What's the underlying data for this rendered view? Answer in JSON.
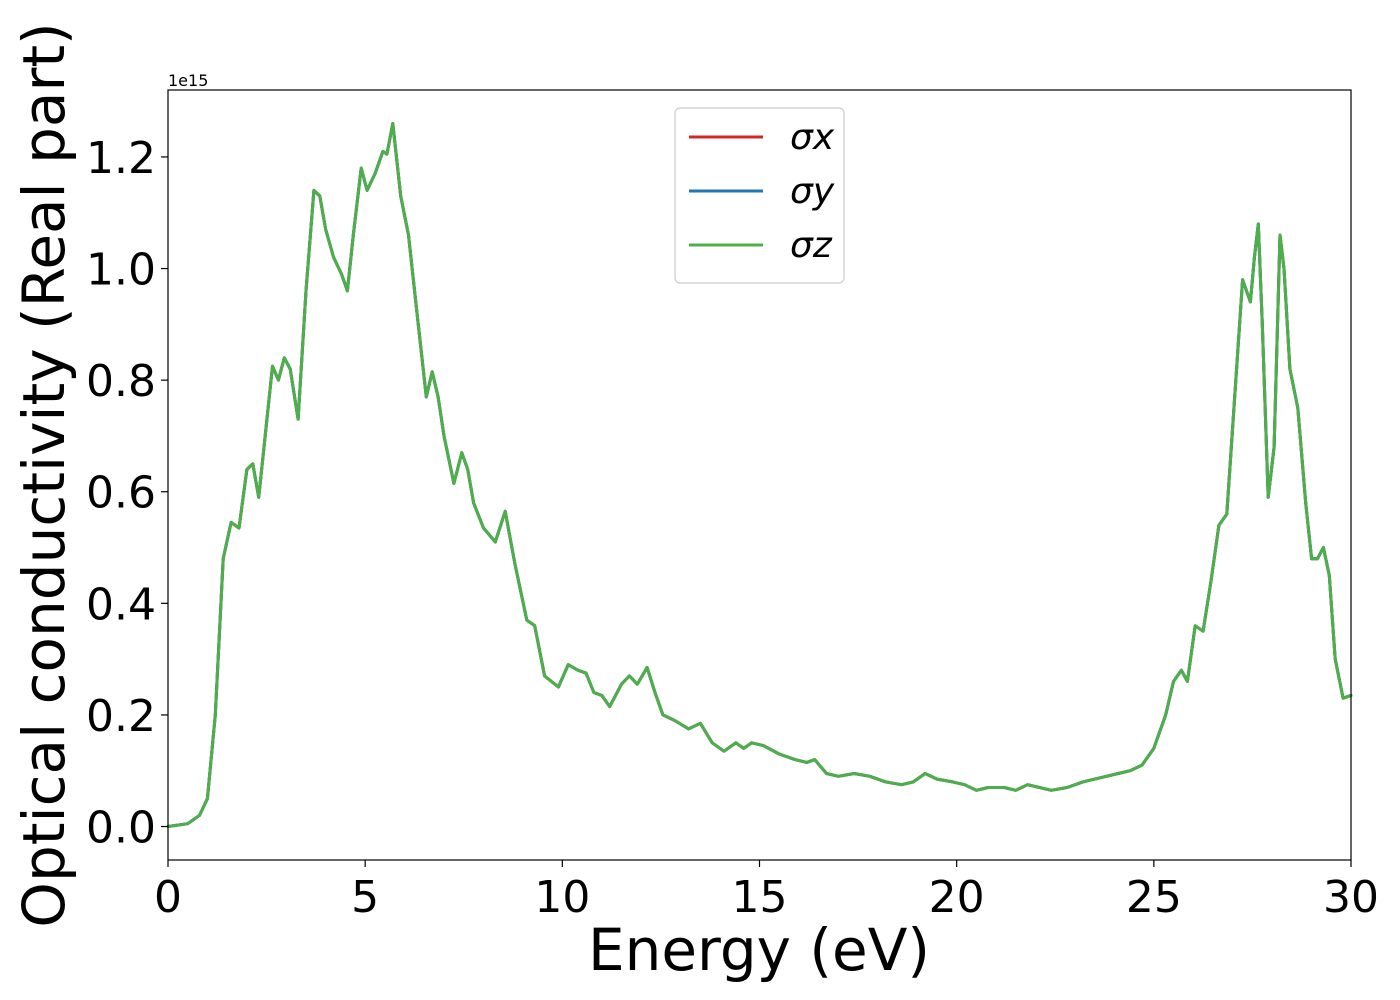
{
  "chart_data": {
    "type": "line",
    "title": "",
    "xlabel": "Energy (eV)",
    "ylabel": "Optical conductivity (Real part)",
    "y_offset_label": "1e15",
    "xlim": [
      0,
      30
    ],
    "ylim": [
      -0.06,
      1.32
    ],
    "x_ticks": [
      0,
      5,
      10,
      15,
      20,
      25,
      30
    ],
    "x_tick_labels": [
      "0",
      "5",
      "10",
      "15",
      "20",
      "25",
      "30"
    ],
    "y_ticks": [
      0.0,
      0.2,
      0.4,
      0.6,
      0.8,
      1.0,
      1.2
    ],
    "y_tick_labels": [
      "0.0",
      "0.2",
      "0.4",
      "0.6",
      "0.8",
      "1.0",
      "1.2"
    ],
    "grid": false,
    "legend_position": "top-center",
    "colors": {
      "sigma_x": "#d62728",
      "sigma_y": "#1f77b4",
      "sigma_z": "#4daf4a"
    },
    "x": [
      0,
      0.5,
      0.8,
      1.0,
      1.2,
      1.4,
      1.6,
      1.8,
      2.0,
      2.15,
      2.3,
      2.45,
      2.65,
      2.8,
      2.95,
      3.1,
      3.3,
      3.5,
      3.7,
      3.85,
      4.0,
      4.2,
      4.4,
      4.55,
      4.7,
      4.9,
      5.05,
      5.25,
      5.45,
      5.55,
      5.7,
      5.9,
      6.1,
      6.3,
      6.55,
      6.7,
      6.85,
      7.0,
      7.25,
      7.45,
      7.6,
      7.75,
      8.0,
      8.3,
      8.55,
      8.8,
      9.1,
      9.3,
      9.55,
      9.9,
      10.15,
      10.4,
      10.6,
      10.8,
      11.0,
      11.2,
      11.5,
      11.7,
      11.9,
      12.15,
      12.35,
      12.55,
      12.85,
      13.2,
      13.5,
      13.8,
      14.1,
      14.4,
      14.6,
      14.8,
      15.1,
      15.5,
      15.9,
      16.2,
      16.4,
      16.7,
      17.0,
      17.4,
      17.8,
      18.2,
      18.6,
      18.9,
      19.2,
      19.5,
      19.9,
      20.2,
      20.5,
      20.8,
      21.2,
      21.5,
      21.8,
      22.1,
      22.4,
      22.8,
      23.2,
      23.5,
      23.8,
      24.1,
      24.4,
      24.7,
      25.0,
      25.3,
      25.5,
      25.7,
      25.85,
      26.05,
      26.25,
      26.45,
      26.65,
      26.85,
      27.05,
      27.25,
      27.45,
      27.55,
      27.65,
      27.75,
      27.9,
      28.05,
      28.2,
      28.3,
      28.45,
      28.65,
      28.85,
      29.0,
      29.15,
      29.3,
      29.45,
      29.6,
      29.8,
      30.0
    ],
    "series": [
      {
        "name": "σx",
        "values": [
          0.0,
          0.005,
          0.02,
          0.05,
          0.2,
          0.48,
          0.545,
          0.535,
          0.64,
          0.65,
          0.59,
          0.69,
          0.825,
          0.8,
          0.84,
          0.82,
          0.73,
          0.96,
          1.14,
          1.13,
          1.07,
          1.02,
          0.99,
          0.96,
          1.06,
          1.18,
          1.14,
          1.17,
          1.21,
          1.205,
          1.26,
          1.13,
          1.06,
          0.93,
          0.77,
          0.815,
          0.77,
          0.7,
          0.615,
          0.67,
          0.64,
          0.58,
          0.535,
          0.51,
          0.565,
          0.47,
          0.37,
          0.36,
          0.27,
          0.25,
          0.29,
          0.28,
          0.275,
          0.24,
          0.235,
          0.215,
          0.255,
          0.27,
          0.255,
          0.285,
          0.24,
          0.2,
          0.19,
          0.175,
          0.185,
          0.15,
          0.135,
          0.15,
          0.14,
          0.15,
          0.145,
          0.13,
          0.12,
          0.115,
          0.12,
          0.095,
          0.09,
          0.095,
          0.09,
          0.08,
          0.075,
          0.08,
          0.095,
          0.085,
          0.08,
          0.075,
          0.065,
          0.07,
          0.07,
          0.065,
          0.075,
          0.07,
          0.065,
          0.07,
          0.08,
          0.085,
          0.09,
          0.095,
          0.1,
          0.11,
          0.14,
          0.2,
          0.26,
          0.28,
          0.26,
          0.36,
          0.35,
          0.44,
          0.54,
          0.56,
          0.77,
          0.98,
          0.94,
          1.02,
          1.08,
          0.9,
          0.59,
          0.68,
          1.06,
          1.0,
          0.82,
          0.75,
          0.58,
          0.48,
          0.48,
          0.5,
          0.45,
          0.3,
          0.23,
          0.235
        ]
      },
      {
        "name": "σy",
        "values": [
          0.0,
          0.005,
          0.02,
          0.05,
          0.2,
          0.48,
          0.545,
          0.535,
          0.64,
          0.65,
          0.59,
          0.69,
          0.825,
          0.8,
          0.84,
          0.82,
          0.73,
          0.96,
          1.14,
          1.13,
          1.07,
          1.02,
          0.99,
          0.96,
          1.06,
          1.18,
          1.14,
          1.17,
          1.21,
          1.205,
          1.26,
          1.13,
          1.06,
          0.93,
          0.77,
          0.815,
          0.77,
          0.7,
          0.615,
          0.67,
          0.64,
          0.58,
          0.535,
          0.51,
          0.565,
          0.47,
          0.37,
          0.36,
          0.27,
          0.25,
          0.29,
          0.28,
          0.275,
          0.24,
          0.235,
          0.215,
          0.255,
          0.27,
          0.255,
          0.285,
          0.24,
          0.2,
          0.19,
          0.175,
          0.185,
          0.15,
          0.135,
          0.15,
          0.14,
          0.15,
          0.145,
          0.13,
          0.12,
          0.115,
          0.12,
          0.095,
          0.09,
          0.095,
          0.09,
          0.08,
          0.075,
          0.08,
          0.095,
          0.085,
          0.08,
          0.075,
          0.065,
          0.07,
          0.07,
          0.065,
          0.075,
          0.07,
          0.065,
          0.07,
          0.08,
          0.085,
          0.09,
          0.095,
          0.1,
          0.11,
          0.14,
          0.2,
          0.26,
          0.28,
          0.26,
          0.36,
          0.35,
          0.44,
          0.54,
          0.56,
          0.77,
          0.98,
          0.94,
          1.02,
          1.08,
          0.9,
          0.59,
          0.68,
          1.06,
          1.0,
          0.82,
          0.75,
          0.58,
          0.48,
          0.48,
          0.5,
          0.45,
          0.3,
          0.23,
          0.235
        ]
      },
      {
        "name": "σz",
        "values": [
          0.0,
          0.005,
          0.02,
          0.05,
          0.2,
          0.48,
          0.545,
          0.535,
          0.64,
          0.65,
          0.59,
          0.69,
          0.825,
          0.8,
          0.84,
          0.82,
          0.73,
          0.96,
          1.14,
          1.13,
          1.07,
          1.02,
          0.99,
          0.96,
          1.06,
          1.18,
          1.14,
          1.17,
          1.21,
          1.205,
          1.26,
          1.13,
          1.06,
          0.93,
          0.77,
          0.815,
          0.77,
          0.7,
          0.615,
          0.67,
          0.64,
          0.58,
          0.535,
          0.51,
          0.565,
          0.47,
          0.37,
          0.36,
          0.27,
          0.25,
          0.29,
          0.28,
          0.275,
          0.24,
          0.235,
          0.215,
          0.255,
          0.27,
          0.255,
          0.285,
          0.24,
          0.2,
          0.19,
          0.175,
          0.185,
          0.15,
          0.135,
          0.15,
          0.14,
          0.15,
          0.145,
          0.13,
          0.12,
          0.115,
          0.12,
          0.095,
          0.09,
          0.095,
          0.09,
          0.08,
          0.075,
          0.08,
          0.095,
          0.085,
          0.08,
          0.075,
          0.065,
          0.07,
          0.07,
          0.065,
          0.075,
          0.07,
          0.065,
          0.07,
          0.08,
          0.085,
          0.09,
          0.095,
          0.1,
          0.11,
          0.14,
          0.2,
          0.26,
          0.28,
          0.26,
          0.36,
          0.35,
          0.44,
          0.54,
          0.56,
          0.77,
          0.98,
          0.94,
          1.02,
          1.08,
          0.9,
          0.59,
          0.68,
          1.06,
          1.0,
          0.82,
          0.75,
          0.58,
          0.48,
          0.48,
          0.5,
          0.45,
          0.3,
          0.23,
          0.235
        ]
      }
    ]
  }
}
